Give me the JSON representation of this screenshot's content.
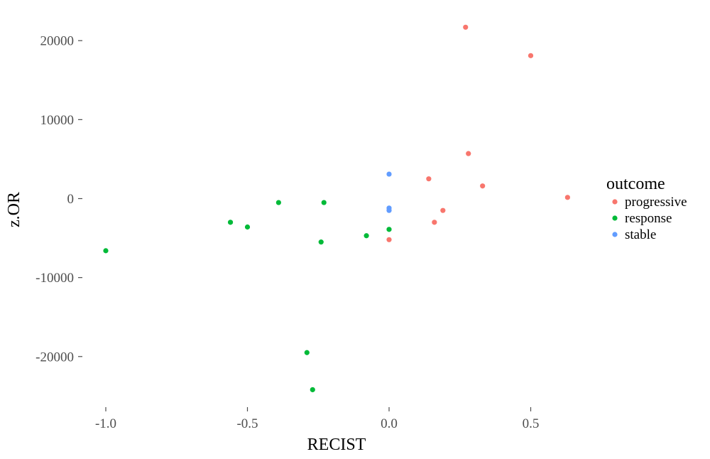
{
  "chart_data": {
    "type": "scatter",
    "xlabel": "RECIST",
    "ylabel": "z.OR",
    "xlim": [
      -1.0,
      0.63
    ],
    "ylim": [
      -24200,
      21700
    ],
    "x_ticks": [
      -1.0,
      -0.5,
      0.0,
      0.5
    ],
    "x_tick_labels": [
      "-1.0",
      "-0.5",
      "0.0",
      "0.5"
    ],
    "y_ticks": [
      -20000,
      -10000,
      0,
      10000,
      20000
    ],
    "y_tick_labels": [
      "-20000",
      "-10000",
      "0",
      "10000",
      "20000"
    ],
    "grid": false,
    "legend": {
      "title": "outcome",
      "placement": "right"
    },
    "series": [
      {
        "name": "progressive",
        "color": "#F8766D",
        "points": [
          [
            0.27,
            21700
          ],
          [
            0.5,
            18100
          ],
          [
            0.28,
            5700
          ],
          [
            0.14,
            2500
          ],
          [
            0.33,
            1600
          ],
          [
            0.63,
            150
          ],
          [
            0.19,
            -1500
          ],
          [
            0.16,
            -3000
          ],
          [
            0.0,
            -5200
          ]
        ]
      },
      {
        "name": "response",
        "color": "#00BA38",
        "points": [
          [
            -1.0,
            -6600
          ],
          [
            -0.56,
            -3000
          ],
          [
            -0.5,
            -3600
          ],
          [
            -0.39,
            -500
          ],
          [
            -0.23,
            -500
          ],
          [
            -0.24,
            -5500
          ],
          [
            -0.08,
            -4700
          ],
          [
            0.0,
            -3900
          ],
          [
            -0.29,
            -19500
          ],
          [
            -0.27,
            -24200
          ]
        ]
      },
      {
        "name": "stable",
        "color": "#619CFF",
        "points": [
          [
            0.0,
            3100
          ],
          [
            0.0,
            -1200
          ],
          [
            0.0,
            -1500
          ]
        ]
      }
    ]
  }
}
